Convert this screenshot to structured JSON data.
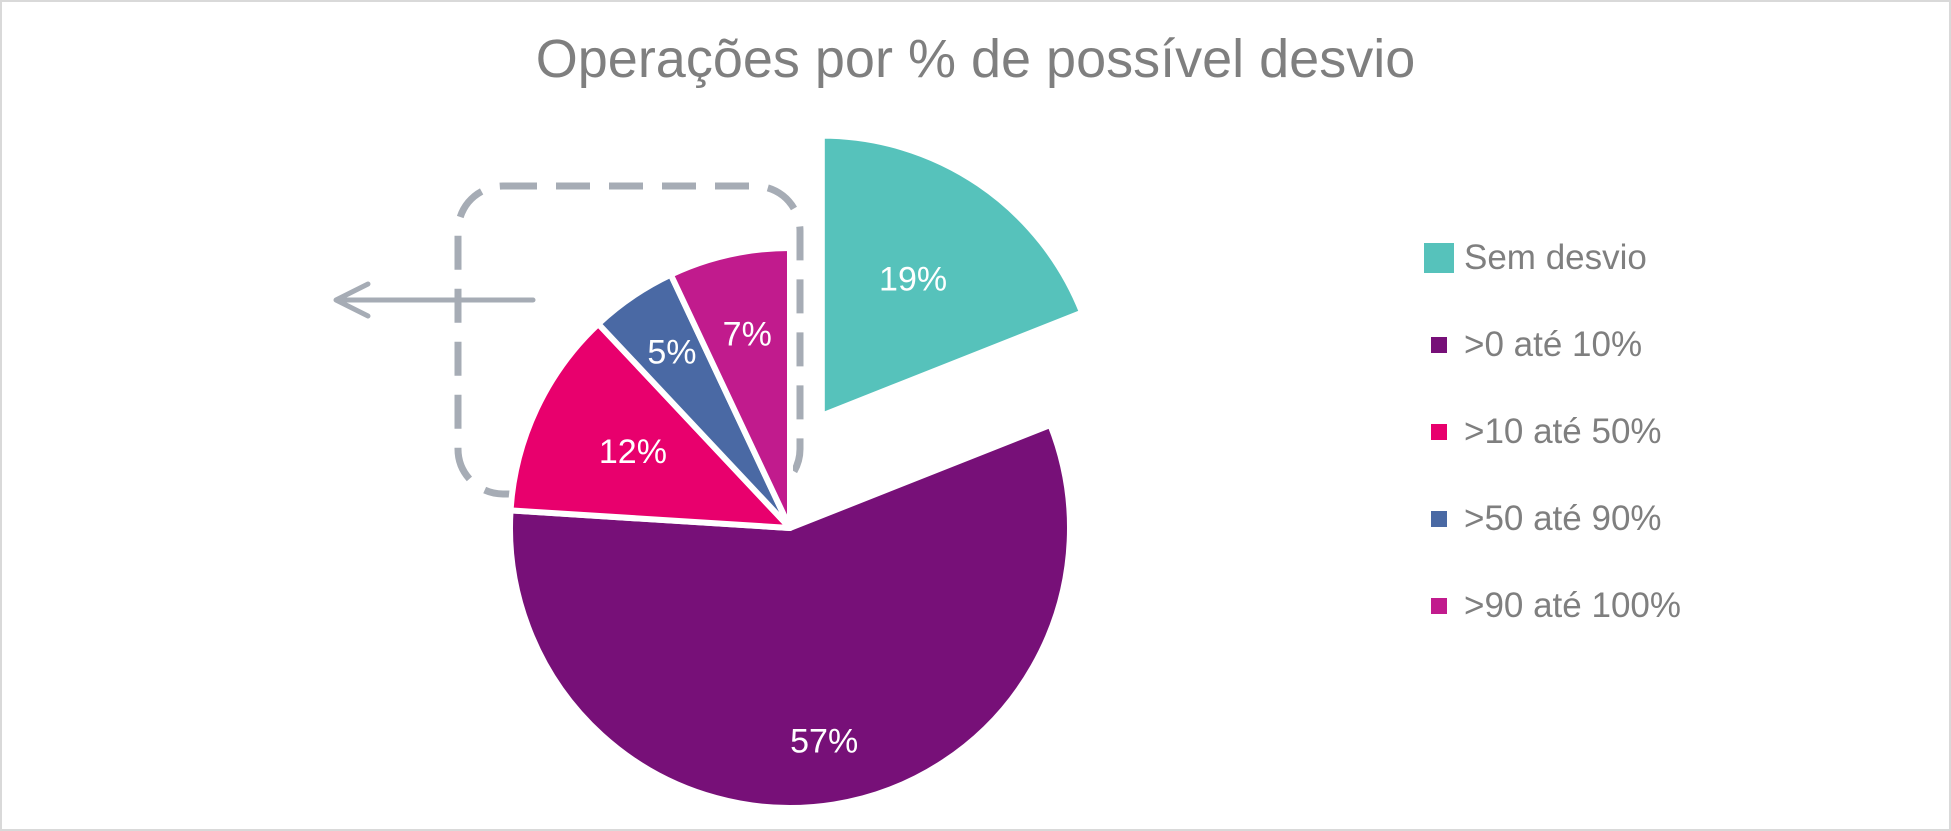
{
  "chart_data": {
    "type": "pie",
    "title": "Operações por % de possível desvio",
    "categories": [
      "Sem desvio",
      ">0 até 10%",
      ">10 até 50%",
      ">50 até 90%",
      ">90 até 100%"
    ],
    "values": [
      19,
      57,
      12,
      5,
      7
    ],
    "data_labels": [
      "19%",
      "57%",
      "12%",
      "5%",
      "7%"
    ],
    "colors": [
      "#56c2bb",
      "#771078",
      "#e8006d",
      "#4a69a4",
      "#c11b8d"
    ],
    "legend_position": "right",
    "exploded": [
      "Sem desvio",
      ">0 até 10%"
    ],
    "annotation": {
      "type": "dashed-rounded-box-with-arrow",
      "encloses": [
        ">10 até 50%",
        ">50 até 90%",
        ">90 até 100%"
      ],
      "arrow_direction": "left",
      "color": "#a6acb5"
    }
  }
}
